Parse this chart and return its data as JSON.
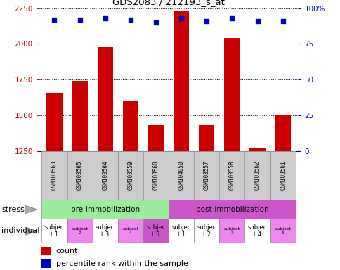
{
  "title": "GDS2083 / 212193_s_at",
  "samples": [
    "GSM103563",
    "GSM103565",
    "GSM103564",
    "GSM103559",
    "GSM103560",
    "GSM104050",
    "GSM103557",
    "GSM103558",
    "GSM103562",
    "GSM103561"
  ],
  "counts": [
    1660,
    1740,
    1975,
    1600,
    1430,
    2230,
    1430,
    2040,
    1270,
    1500
  ],
  "percentile_ranks": [
    92,
    92,
    93,
    92,
    90,
    93,
    91,
    93,
    91,
    91
  ],
  "bar_color": "#cc0000",
  "dot_color": "#0000cc",
  "ylim_left": [
    1250,
    2250
  ],
  "yticks_left": [
    1250,
    1500,
    1750,
    2000,
    2250
  ],
  "ylim_right": [
    0,
    100
  ],
  "yticks_right": [
    0,
    25,
    50,
    75,
    100
  ],
  "stress_groups": [
    {
      "label": "pre-immobilization",
      "start": 0,
      "end": 5,
      "color": "#99ee99"
    },
    {
      "label": "post-immobilization",
      "start": 5,
      "end": 10,
      "color": "#cc55cc"
    }
  ],
  "individuals": [
    {
      "label": "subjec\nt 1",
      "idx": 0,
      "color": "#ffffff",
      "small": false
    },
    {
      "label": "subject\n2",
      "idx": 1,
      "color": "#ee88ee",
      "small": true
    },
    {
      "label": "subjec\nt 3",
      "idx": 2,
      "color": "#ffffff",
      "small": false
    },
    {
      "label": "subject\n4",
      "idx": 3,
      "color": "#ee88ee",
      "small": true
    },
    {
      "label": "subjec\nt 5",
      "idx": 4,
      "color": "#cc55cc",
      "small": false
    },
    {
      "label": "subjec\nt 1",
      "idx": 5,
      "color": "#ffffff",
      "small": false
    },
    {
      "label": "subjec\nt 2",
      "idx": 6,
      "color": "#ffffff",
      "small": false
    },
    {
      "label": "subject\n3",
      "idx": 7,
      "color": "#ee88ee",
      "small": true
    },
    {
      "label": "subjec\nt 4",
      "idx": 8,
      "color": "#ffffff",
      "small": false
    },
    {
      "label": "subject\n5",
      "idx": 9,
      "color": "#ee88ee",
      "small": true
    }
  ],
  "legend_count_color": "#cc0000",
  "legend_dot_color": "#0000cc",
  "left_axis_color": "#cc0000",
  "right_axis_color": "#0000cc",
  "sample_box_color": "#cccccc",
  "sample_box_edge": "#999999"
}
